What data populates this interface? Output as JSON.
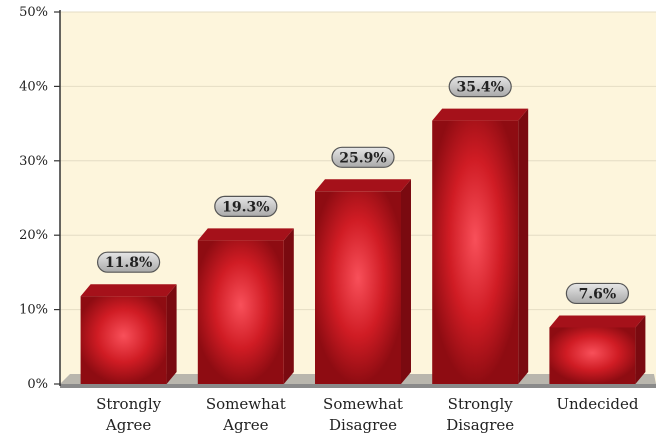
{
  "chart_data": {
    "type": "bar",
    "title": "",
    "xlabel": "",
    "ylabel": "",
    "ylim": [
      0,
      50
    ],
    "yticks": [
      0,
      10,
      20,
      30,
      40,
      50
    ],
    "tick_suffix": "%",
    "grid": true,
    "categories": [
      [
        "Strongly",
        "Agree"
      ],
      [
        "Somewhat",
        "Agree"
      ],
      [
        "Somewhat",
        "Disagree"
      ],
      [
        "Strongly",
        "Disagree"
      ],
      [
        "Undecided"
      ]
    ],
    "values": [
      11.8,
      19.3,
      25.9,
      35.4,
      7.6
    ],
    "value_labels": [
      "11.8%",
      "19.3%",
      "25.9%",
      "35.4%",
      "7.6%"
    ],
    "colors": {
      "plot_background": "#fdf5dc",
      "bar_front": "#c8141c",
      "bar_highlight": "#f5404c",
      "bar_side": "#7a0a10",
      "bar_top": "#a5111a",
      "floor": "#8a8a8a",
      "label_pill": "#c4c4c4"
    }
  }
}
